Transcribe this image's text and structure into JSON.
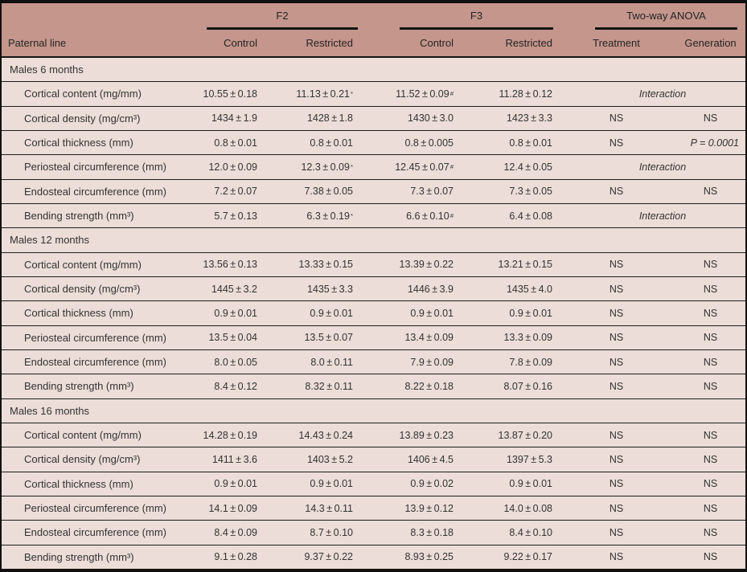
{
  "colors": {
    "header_bg": "#c5968c",
    "row_bg": "#ecddd8",
    "line": "#1d1d1d",
    "text": "#333333"
  },
  "header": {
    "row_label": "Paternal line",
    "groups": [
      {
        "label": "F2"
      },
      {
        "label": "F3"
      },
      {
        "label": "Two-way ANOVA"
      }
    ],
    "columns": [
      "Control",
      "Restricted",
      "Control",
      "Restricted",
      "Treatment",
      "Generation"
    ]
  },
  "sections": [
    {
      "title": "Males 6 months",
      "rows": [
        {
          "label": "Cortical content (mg/mm)",
          "f2_control": {
            "v": "10.55 ± 0.18"
          },
          "f2_restricted": {
            "v": "11.13 ± 0.21",
            "sup": "*"
          },
          "f3_control": {
            "v": "11.52 ± 0.09",
            "sup": "#"
          },
          "f3_restricted": {
            "v": "11.28 ± 0.12"
          },
          "anova": {
            "interaction": "Interaction"
          }
        },
        {
          "label": "Cortical density (mg/cm³)",
          "f2_control": {
            "v": "1434 ± 1.9"
          },
          "f2_restricted": {
            "v": "1428 ± 1.8"
          },
          "f3_control": {
            "v": "1430 ± 3.0"
          },
          "f3_restricted": {
            "v": "1423 ± 3.3"
          },
          "anova": {
            "treatment": "NS",
            "generation": "NS"
          }
        },
        {
          "label": "Cortical thickness (mm)",
          "f2_control": {
            "v": "0.8 ± 0.01"
          },
          "f2_restricted": {
            "v": "0.8 ± 0.01"
          },
          "f3_control": {
            "v": "0.8 ± 0.005"
          },
          "f3_restricted": {
            "v": "0.8 ± 0.01"
          },
          "anova": {
            "treatment": "NS",
            "generation": "P = 0.0001",
            "generation_italic": true
          }
        },
        {
          "label": "Periosteal circumference (mm)",
          "f2_control": {
            "v": "12.0 ± 0.09"
          },
          "f2_restricted": {
            "v": "12.3 ± 0.09",
            "sup": "*"
          },
          "f3_control": {
            "v": "12.45 ± 0.07",
            "sup": "#"
          },
          "f3_restricted": {
            "v": "12.4 ± 0.05"
          },
          "anova": {
            "interaction": "Interaction"
          }
        },
        {
          "label": "Endosteal circumference (mm)",
          "f2_control": {
            "v": "7.2 ± 0.07"
          },
          "f2_restricted": {
            "v": "7.38 ± 0.05"
          },
          "f3_control": {
            "v": "7.3 ± 0.07"
          },
          "f3_restricted": {
            "v": "7.3 ± 0.05"
          },
          "anova": {
            "treatment": "NS",
            "generation": "NS"
          }
        },
        {
          "label": "Bending strength (mm³)",
          "f2_control": {
            "v": "5.7 ± 0.13"
          },
          "f2_restricted": {
            "v": "6.3 ± 0.19",
            "sup": "*"
          },
          "f3_control": {
            "v": "6.6 ± 0.10",
            "sup": "#"
          },
          "f3_restricted": {
            "v": "6.4 ± 0.08"
          },
          "anova": {
            "interaction": "Interaction"
          }
        }
      ]
    },
    {
      "title": "Males 12 months",
      "rows": [
        {
          "label": "Cortical content (mg/mm)",
          "f2_control": {
            "v": "13.56 ± 0.13"
          },
          "f2_restricted": {
            "v": "13.33 ± 0.15"
          },
          "f3_control": {
            "v": "13.39 ± 0.22"
          },
          "f3_restricted": {
            "v": "13.21 ± 0.15"
          },
          "anova": {
            "treatment": "NS",
            "generation": "NS"
          }
        },
        {
          "label": "Cortical density (mg/cm³)",
          "f2_control": {
            "v": "1445 ± 3.2"
          },
          "f2_restricted": {
            "v": "1435 ± 3.3"
          },
          "f3_control": {
            "v": "1446 ± 3.9"
          },
          "f3_restricted": {
            "v": "1435 ± 4.0"
          },
          "anova": {
            "treatment": "NS",
            "generation": "NS"
          }
        },
        {
          "label": "Cortical thickness (mm)",
          "f2_control": {
            "v": "0.9 ± 0.01"
          },
          "f2_restricted": {
            "v": "0.9 ± 0.01"
          },
          "f3_control": {
            "v": "0.9 ± 0.01"
          },
          "f3_restricted": {
            "v": "0.9 ± 0.01"
          },
          "anova": {
            "treatment": "NS",
            "generation": "NS"
          }
        },
        {
          "label": "Periosteal circumference (mm)",
          "f2_control": {
            "v": "13.5 ± 0.04"
          },
          "f2_restricted": {
            "v": "13.5 ± 0.07"
          },
          "f3_control": {
            "v": "13.4 ± 0.09"
          },
          "f3_restricted": {
            "v": "13.3 ± 0.09"
          },
          "anova": {
            "treatment": "NS",
            "generation": "NS"
          }
        },
        {
          "label": "Endosteal circumference (mm)",
          "f2_control": {
            "v": "8.0 ± 0.05"
          },
          "f2_restricted": {
            "v": "8.0 ± 0.11"
          },
          "f3_control": {
            "v": "7.9 ± 0.09"
          },
          "f3_restricted": {
            "v": "7.8 ± 0.09"
          },
          "anova": {
            "treatment": "NS",
            "generation": "NS"
          }
        },
        {
          "label": "Bending strength (mm³)",
          "f2_control": {
            "v": "8.4 ± 0.12"
          },
          "f2_restricted": {
            "v": "8.32 ± 0.11"
          },
          "f3_control": {
            "v": "8.22 ± 0.18"
          },
          "f3_restricted": {
            "v": "8.07 ± 0.16"
          },
          "anova": {
            "treatment": "NS",
            "generation": "NS"
          }
        }
      ]
    },
    {
      "title": "Males 16 months",
      "rows": [
        {
          "label": "Cortical content (mg/mm)",
          "f2_control": {
            "v": "14.28 ± 0.19"
          },
          "f2_restricted": {
            "v": "14.43 ± 0.24"
          },
          "f3_control": {
            "v": "13.89 ± 0.23"
          },
          "f3_restricted": {
            "v": "13.87 ± 0.20"
          },
          "anova": {
            "treatment": "NS",
            "generation": "NS"
          }
        },
        {
          "label": "Cortical density (mg/cm³)",
          "f2_control": {
            "v": "1411 ± 3.6"
          },
          "f2_restricted": {
            "v": "1403 ± 5.2"
          },
          "f3_control": {
            "v": "1406 ± 4.5"
          },
          "f3_restricted": {
            "v": "1397 ± 5.3"
          },
          "anova": {
            "treatment": "NS",
            "generation": "NS"
          }
        },
        {
          "label": "Cortical thickness (mm)",
          "f2_control": {
            "v": "0.9 ± 0.01"
          },
          "f2_restricted": {
            "v": "0.9 ± 0.01"
          },
          "f3_control": {
            "v": "0.9 ± 0.02"
          },
          "f3_restricted": {
            "v": "0.9 ± 0.01"
          },
          "anova": {
            "treatment": "NS",
            "generation": "NS"
          }
        },
        {
          "label": "Periosteal circumference (mm)",
          "f2_control": {
            "v": "14.1 ± 0.09"
          },
          "f2_restricted": {
            "v": "14.3 ± 0.11"
          },
          "f3_control": {
            "v": "13.9 ± 0.12"
          },
          "f3_restricted": {
            "v": "14.0 ± 0.08"
          },
          "anova": {
            "treatment": "NS",
            "generation": "NS"
          }
        },
        {
          "label": "Endosteal circumference (mm)",
          "f2_control": {
            "v": "8.4 ± 0.09"
          },
          "f2_restricted": {
            "v": "8.7 ± 0.10"
          },
          "f3_control": {
            "v": "8.3 ± 0.18"
          },
          "f3_restricted": {
            "v": "8.4 ± 0.10"
          },
          "anova": {
            "treatment": "NS",
            "generation": "NS"
          }
        },
        {
          "label": "Bending strength (mm³)",
          "f2_control": {
            "v": "9.1 ± 0.28"
          },
          "f2_restricted": {
            "v": "9.37 ± 0.22"
          },
          "f3_control": {
            "v": "8.93 ± 0.25"
          },
          "f3_restricted": {
            "v": "9.22 ± 0.17"
          },
          "anova": {
            "treatment": "NS",
            "generation": "NS"
          }
        }
      ]
    }
  ]
}
